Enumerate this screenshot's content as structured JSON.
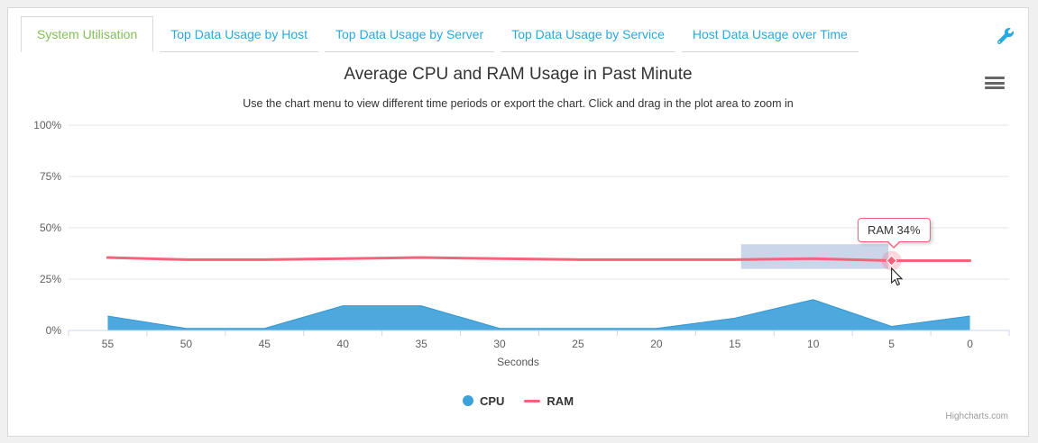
{
  "tabs": {
    "items": [
      {
        "label": "System Utilisation",
        "active": true
      },
      {
        "label": "Top Data Usage by Host",
        "active": false
      },
      {
        "label": "Top Data Usage by Server",
        "active": false
      },
      {
        "label": "Top Data Usage by Service",
        "active": false
      },
      {
        "label": "Host Data Usage over Time",
        "active": false
      }
    ],
    "active_color": "#83c158",
    "inactive_color": "#29a9e1"
  },
  "toolbar": {
    "settings_icon": "wrench"
  },
  "chart": {
    "title": "Average CPU and RAM Usage in Past Minute",
    "subtitle": "Use the chart menu to view different time periods or export the chart. Click and drag in the plot area to zoom in",
    "menu_icon": "hamburger",
    "credits": "Highcharts.com",
    "tooltip": {
      "text": "RAM 34%",
      "border_color": "#f4637a"
    },
    "cursor_icon": "arrow-pointer"
  },
  "chart_data": {
    "type": "area",
    "title": "Average CPU and RAM Usage in Past Minute",
    "subtitle": "Use the chart menu to view different time periods or export the chart. Click and drag in the plot area to zoom in",
    "categories": [
      55,
      50,
      45,
      40,
      35,
      30,
      25,
      20,
      15,
      10,
      5,
      0
    ],
    "xlabel": "Seconds",
    "ylabel": "",
    "ylim": [
      0,
      100
    ],
    "ytick_step": 25,
    "ytick_suffix": "%",
    "grid": true,
    "legend_position": "bottom-center",
    "colors": {
      "grid": "#e6e6e6",
      "axis_line": "#ccd6eb",
      "axis_label": "#606063",
      "selection": "rgba(51,92,173,0.25)"
    },
    "series": [
      {
        "name": "CPU",
        "type": "area",
        "color": "#3da1dc",
        "fill": "#4da8de",
        "edge": "#3497d3",
        "values": [
          7,
          1,
          1,
          12,
          12,
          1,
          1,
          1,
          6,
          15,
          2,
          7
        ]
      },
      {
        "name": "RAM",
        "type": "line",
        "color": "#f4637a",
        "values": [
          35.5,
          34.5,
          34.5,
          35,
          35.5,
          35,
          34.5,
          34.5,
          34.5,
          35,
          34,
          34
        ]
      }
    ],
    "hover_point": {
      "series": "RAM",
      "x": 5,
      "y": 34
    },
    "selection": {
      "x_from": 14.6,
      "x_to": 5.2,
      "y_from": 30,
      "y_to": 42
    }
  }
}
